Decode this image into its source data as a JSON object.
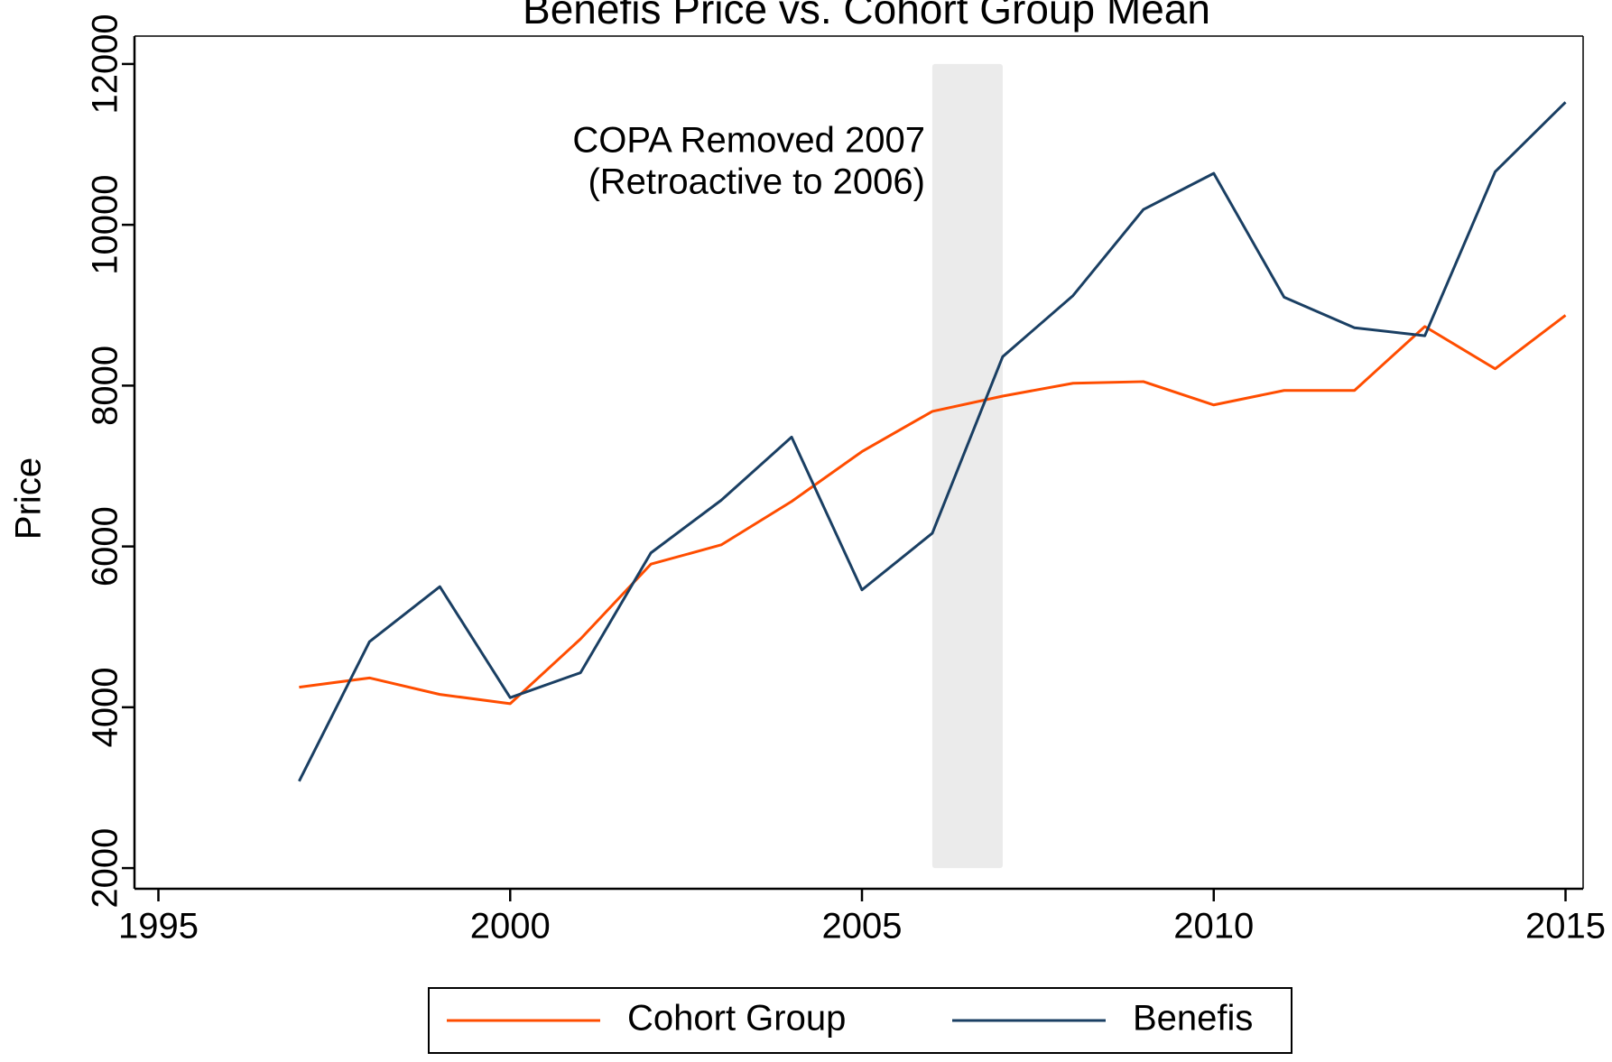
{
  "chart_data": {
    "type": "line",
    "title": "Benefis Price vs. Cohort Group Mean",
    "y_label": "Price",
    "annotation": [
      "COPA Removed 2007",
      "(Retroactive to 2006)"
    ],
    "shaded_region": [
      2006,
      2007
    ],
    "shade_color": "#ebebeb",
    "x": [
      1997,
      1998,
      1999,
      2000,
      2001,
      2002,
      2003,
      2004,
      2005,
      2006,
      2007,
      2008,
      2009,
      2010,
      2011,
      2012,
      2013,
      2014,
      2015
    ],
    "series": [
      {
        "name": "Cohort Group",
        "color": "#ff4d00",
        "values": [
          4250,
          4365,
          4160,
          4045,
          4850,
          5780,
          6020,
          6560,
          7180,
          7680,
          7870,
          8030,
          8050,
          7760,
          7940,
          7940,
          8735,
          8210,
          8875
        ]
      },
      {
        "name": "Benefis",
        "color": "#1a3f63",
        "values": [
          3080,
          4815,
          5500,
          4120,
          4430,
          5920,
          6575,
          7360,
          5460,
          6165,
          8360,
          9120,
          10190,
          10640,
          9100,
          8720,
          8620,
          10660,
          11525
        ]
      }
    ],
    "xlim": [
      1994.66,
      2015.25
    ],
    "xticks": [
      1995,
      2000,
      2005,
      2010,
      2015
    ],
    "ylim": [
      1743,
      12347
    ],
    "yticks": [
      2000,
      4000,
      6000,
      8000,
      10000,
      12000
    ],
    "legend": "bottom"
  }
}
